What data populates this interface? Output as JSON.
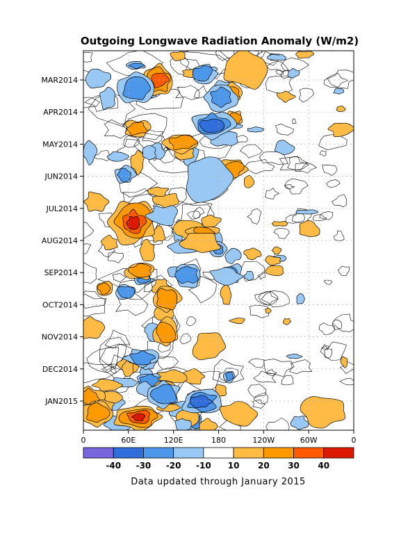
{
  "chart_data": {
    "type": "heatmap",
    "title": "Outgoing Longwave Radiation Anomaly (W/m2)",
    "x_ticks": [
      "0",
      "60E",
      "120E",
      "180",
      "120W",
      "60W",
      "0"
    ],
    "y_ticks": [
      "MAR2014",
      "APR2014",
      "MAY2014",
      "JUN2014",
      "JUL2014",
      "AUG2014",
      "SEP2014",
      "OCT2014",
      "NOV2014",
      "DEC2014",
      "JAN2015"
    ],
    "colorbar": {
      "colors": [
        "#7766dd",
        "#2f6edb",
        "#4d97ea",
        "#99c8f5",
        "#ffffff",
        "#ffbb44",
        "#ff9900",
        "#ff5a00",
        "#dd1a00"
      ],
      "labels": [
        "-40",
        "-30",
        "-20",
        "-10",
        "10",
        "20",
        "30",
        "40"
      ]
    },
    "grid": "dotted",
    "footnote": "Data updated through January 2015"
  }
}
